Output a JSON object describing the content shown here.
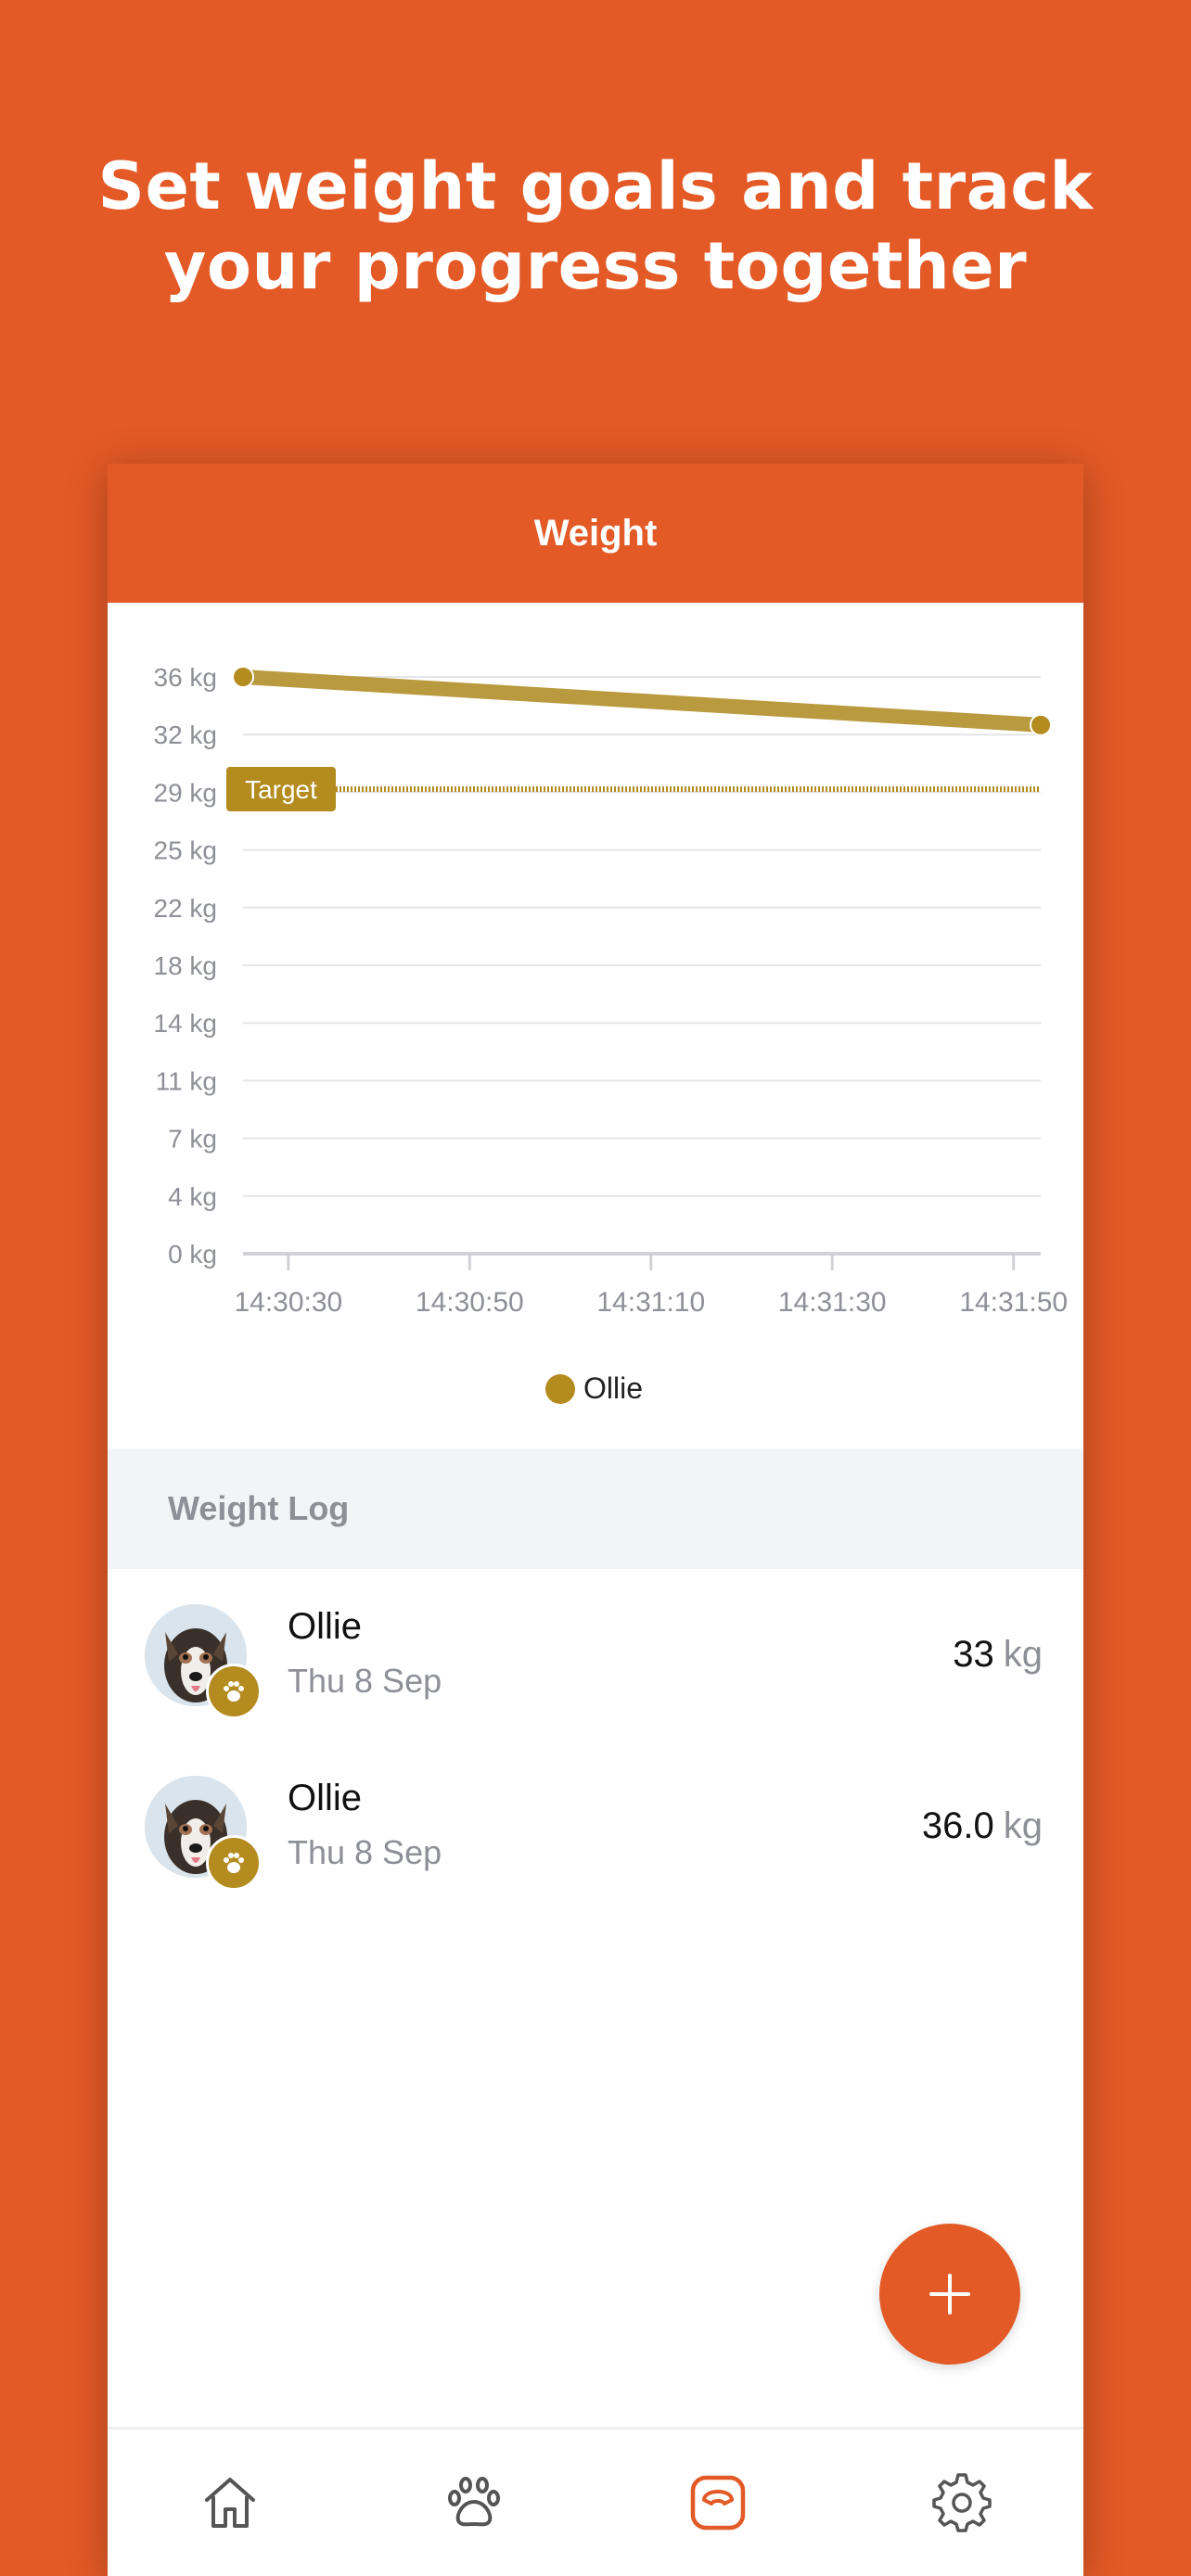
{
  "headline": {
    "line1": "Set weight goals and track",
    "line2": "your progress together"
  },
  "card": {
    "title": "Weight"
  },
  "chart_data": {
    "type": "line",
    "title": "",
    "xlabel": "",
    "ylabel": "",
    "y_ticks": [
      "0 kg",
      "4 kg",
      "7 kg",
      "11 kg",
      "14 kg",
      "18 kg",
      "22 kg",
      "25 kg",
      "29 kg",
      "32 kg",
      "36 kg"
    ],
    "ylim": [
      0,
      36
    ],
    "x_ticks": [
      "14:30:30",
      "14:30:50",
      "14:31:10",
      "14:31:30",
      "14:31:50"
    ],
    "xlim": [
      "14:30:25",
      "14:31:53"
    ],
    "series": [
      {
        "name": "Ollie",
        "color": "#B38B1F",
        "points": [
          {
            "x": "14:30:25",
            "y": 36.0
          },
          {
            "x": "14:31:53",
            "y": 33.0
          }
        ]
      }
    ],
    "target": {
      "label": "Target",
      "value": 29,
      "color": "#B38B1F"
    },
    "grid": true,
    "legend": "bottom-center"
  },
  "log": {
    "header": "Weight Log",
    "items": [
      {
        "name": "Ollie",
        "date": "Thu 8 Sep",
        "value": "33",
        "unit": "kg"
      },
      {
        "name": "Ollie",
        "date": "Thu 8 Sep",
        "value": "36.0",
        "unit": "kg"
      }
    ]
  },
  "colors": {
    "accent": "#E35A26",
    "pet": "#B38B1F",
    "muted_text": "#8E9097"
  },
  "icons": {
    "fab": "plus-icon",
    "nav": [
      "home-icon",
      "paw-icon",
      "weight-scale-icon",
      "gear-icon"
    ]
  }
}
